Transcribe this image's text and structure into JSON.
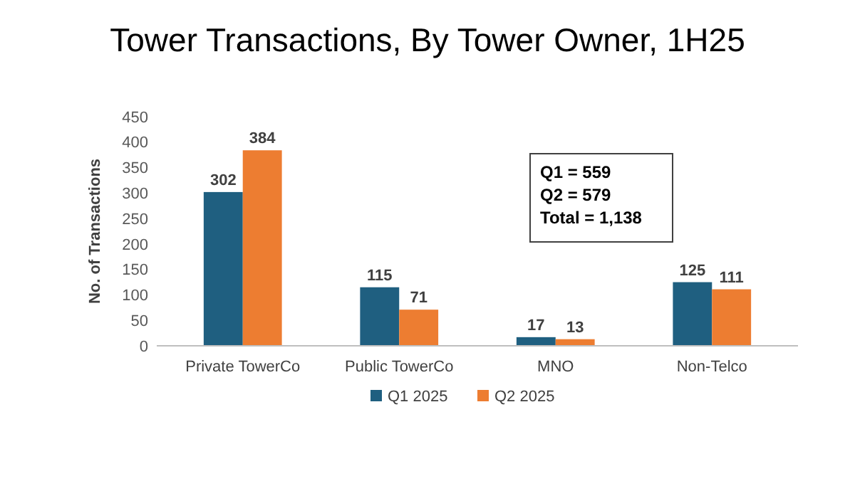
{
  "chart_data": {
    "type": "bar",
    "title": "Tower Transactions, By Tower Owner, 1H25",
    "ylabel": "No. of Transactions",
    "categories": [
      "Private TowerCo",
      "Public TowerCo",
      "MNO",
      "Non-Telco"
    ],
    "series": [
      {
        "name": "Q1 2025",
        "color": "#1f5f80",
        "values": [
          302,
          115,
          17,
          125
        ]
      },
      {
        "name": "Q2 2025",
        "color": "#ed7d31",
        "values": [
          384,
          71,
          13,
          111
        ]
      }
    ],
    "ylim": [
      0,
      450
    ],
    "yticks": [
      0,
      50,
      100,
      150,
      200,
      250,
      300,
      350,
      400,
      450
    ],
    "annotations": [
      "Q1 = 559",
      "Q2 = 579",
      "Total = 1,138"
    ],
    "data_labels": true,
    "legend": "bottom",
    "grid": false
  }
}
